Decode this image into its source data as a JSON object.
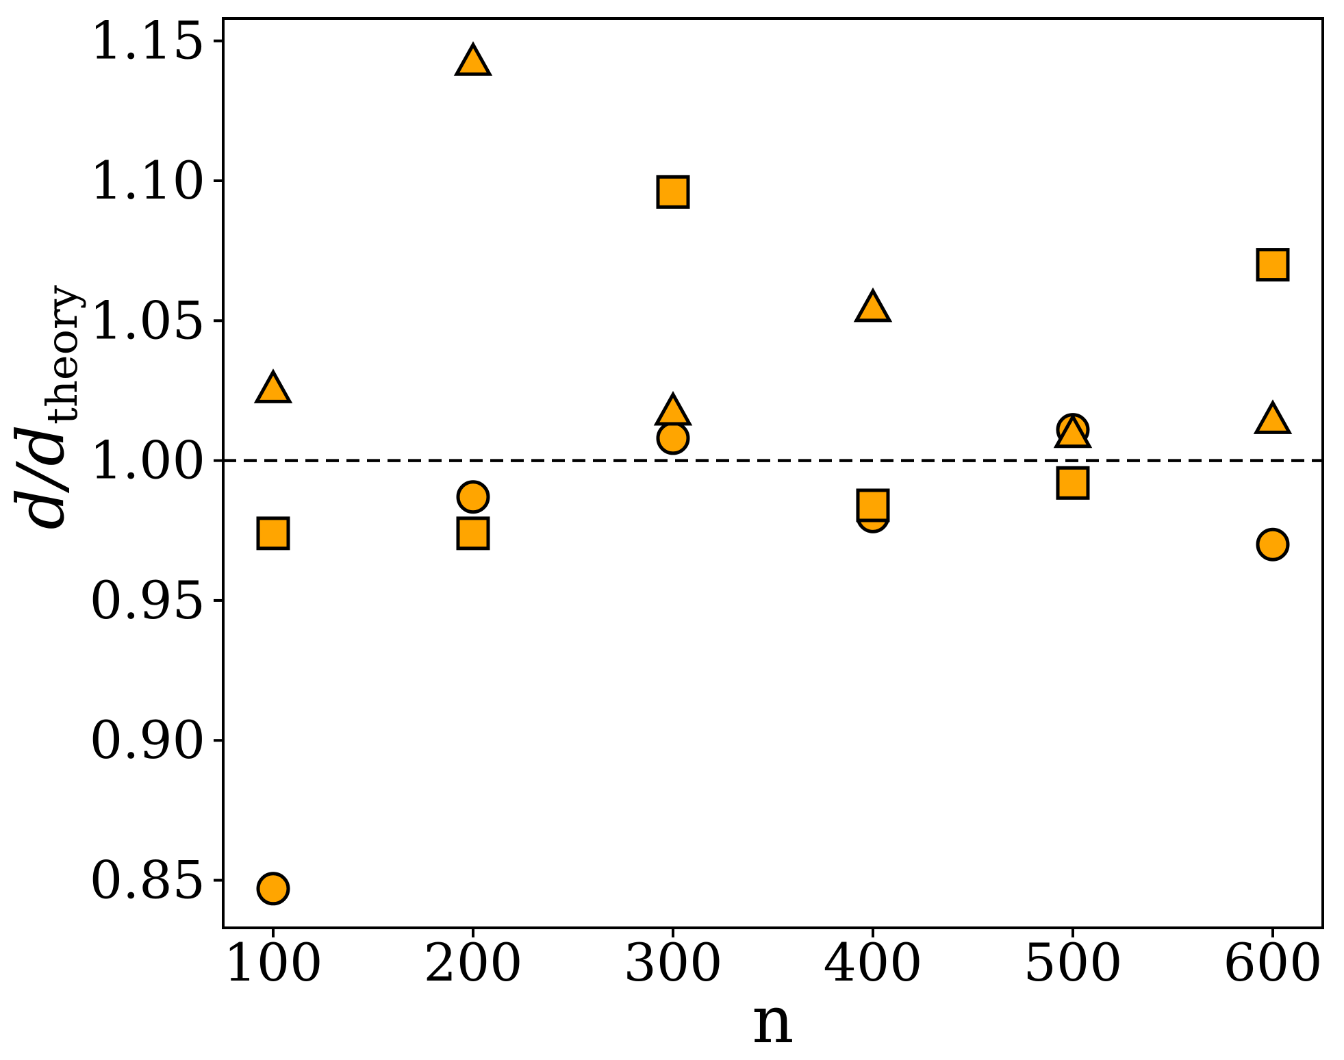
{
  "figure": {
    "background": "#FFFFFF"
  },
  "chart_data": {
    "type": "scatter",
    "title": "",
    "xlabel": "n",
    "ylabel": "d/d_theory",
    "ylabel_main": "d/d",
    "ylabel_sub": "theory",
    "xlim": [
      75,
      625
    ],
    "ylim": [
      0.833,
      1.158
    ],
    "grid": false,
    "legend_position": "none",
    "xtick_values": [
      100,
      200,
      300,
      400,
      500,
      600
    ],
    "xtick_labels": [
      "100",
      "200",
      "300",
      "400",
      "500",
      "600"
    ],
    "ytick_values": [
      0.85,
      0.9,
      0.95,
      1.0,
      1.05,
      1.1,
      1.15
    ],
    "ytick_labels": [
      "0.85",
      "0.90",
      "0.95",
      "1.00",
      "1.05",
      "1.10",
      "1.15"
    ],
    "reference_line": {
      "y": 1.0,
      "style": "dashed",
      "color": "#000000"
    },
    "marker_fill": "#FFA500",
    "marker_edge": "#000000",
    "x": [
      100,
      200,
      300,
      400,
      500,
      600
    ],
    "series": [
      {
        "name": "circle",
        "marker": "circle",
        "values": [
          0.847,
          0.987,
          1.008,
          0.98,
          1.011,
          0.97
        ]
      },
      {
        "name": "square",
        "marker": "square",
        "values": [
          0.974,
          0.974,
          1.096,
          0.984,
          0.992,
          1.07
        ]
      },
      {
        "name": "triangle",
        "marker": "triangle-up",
        "values": [
          1.026,
          1.143,
          1.018,
          1.055,
          1.01,
          1.015
        ]
      }
    ]
  }
}
